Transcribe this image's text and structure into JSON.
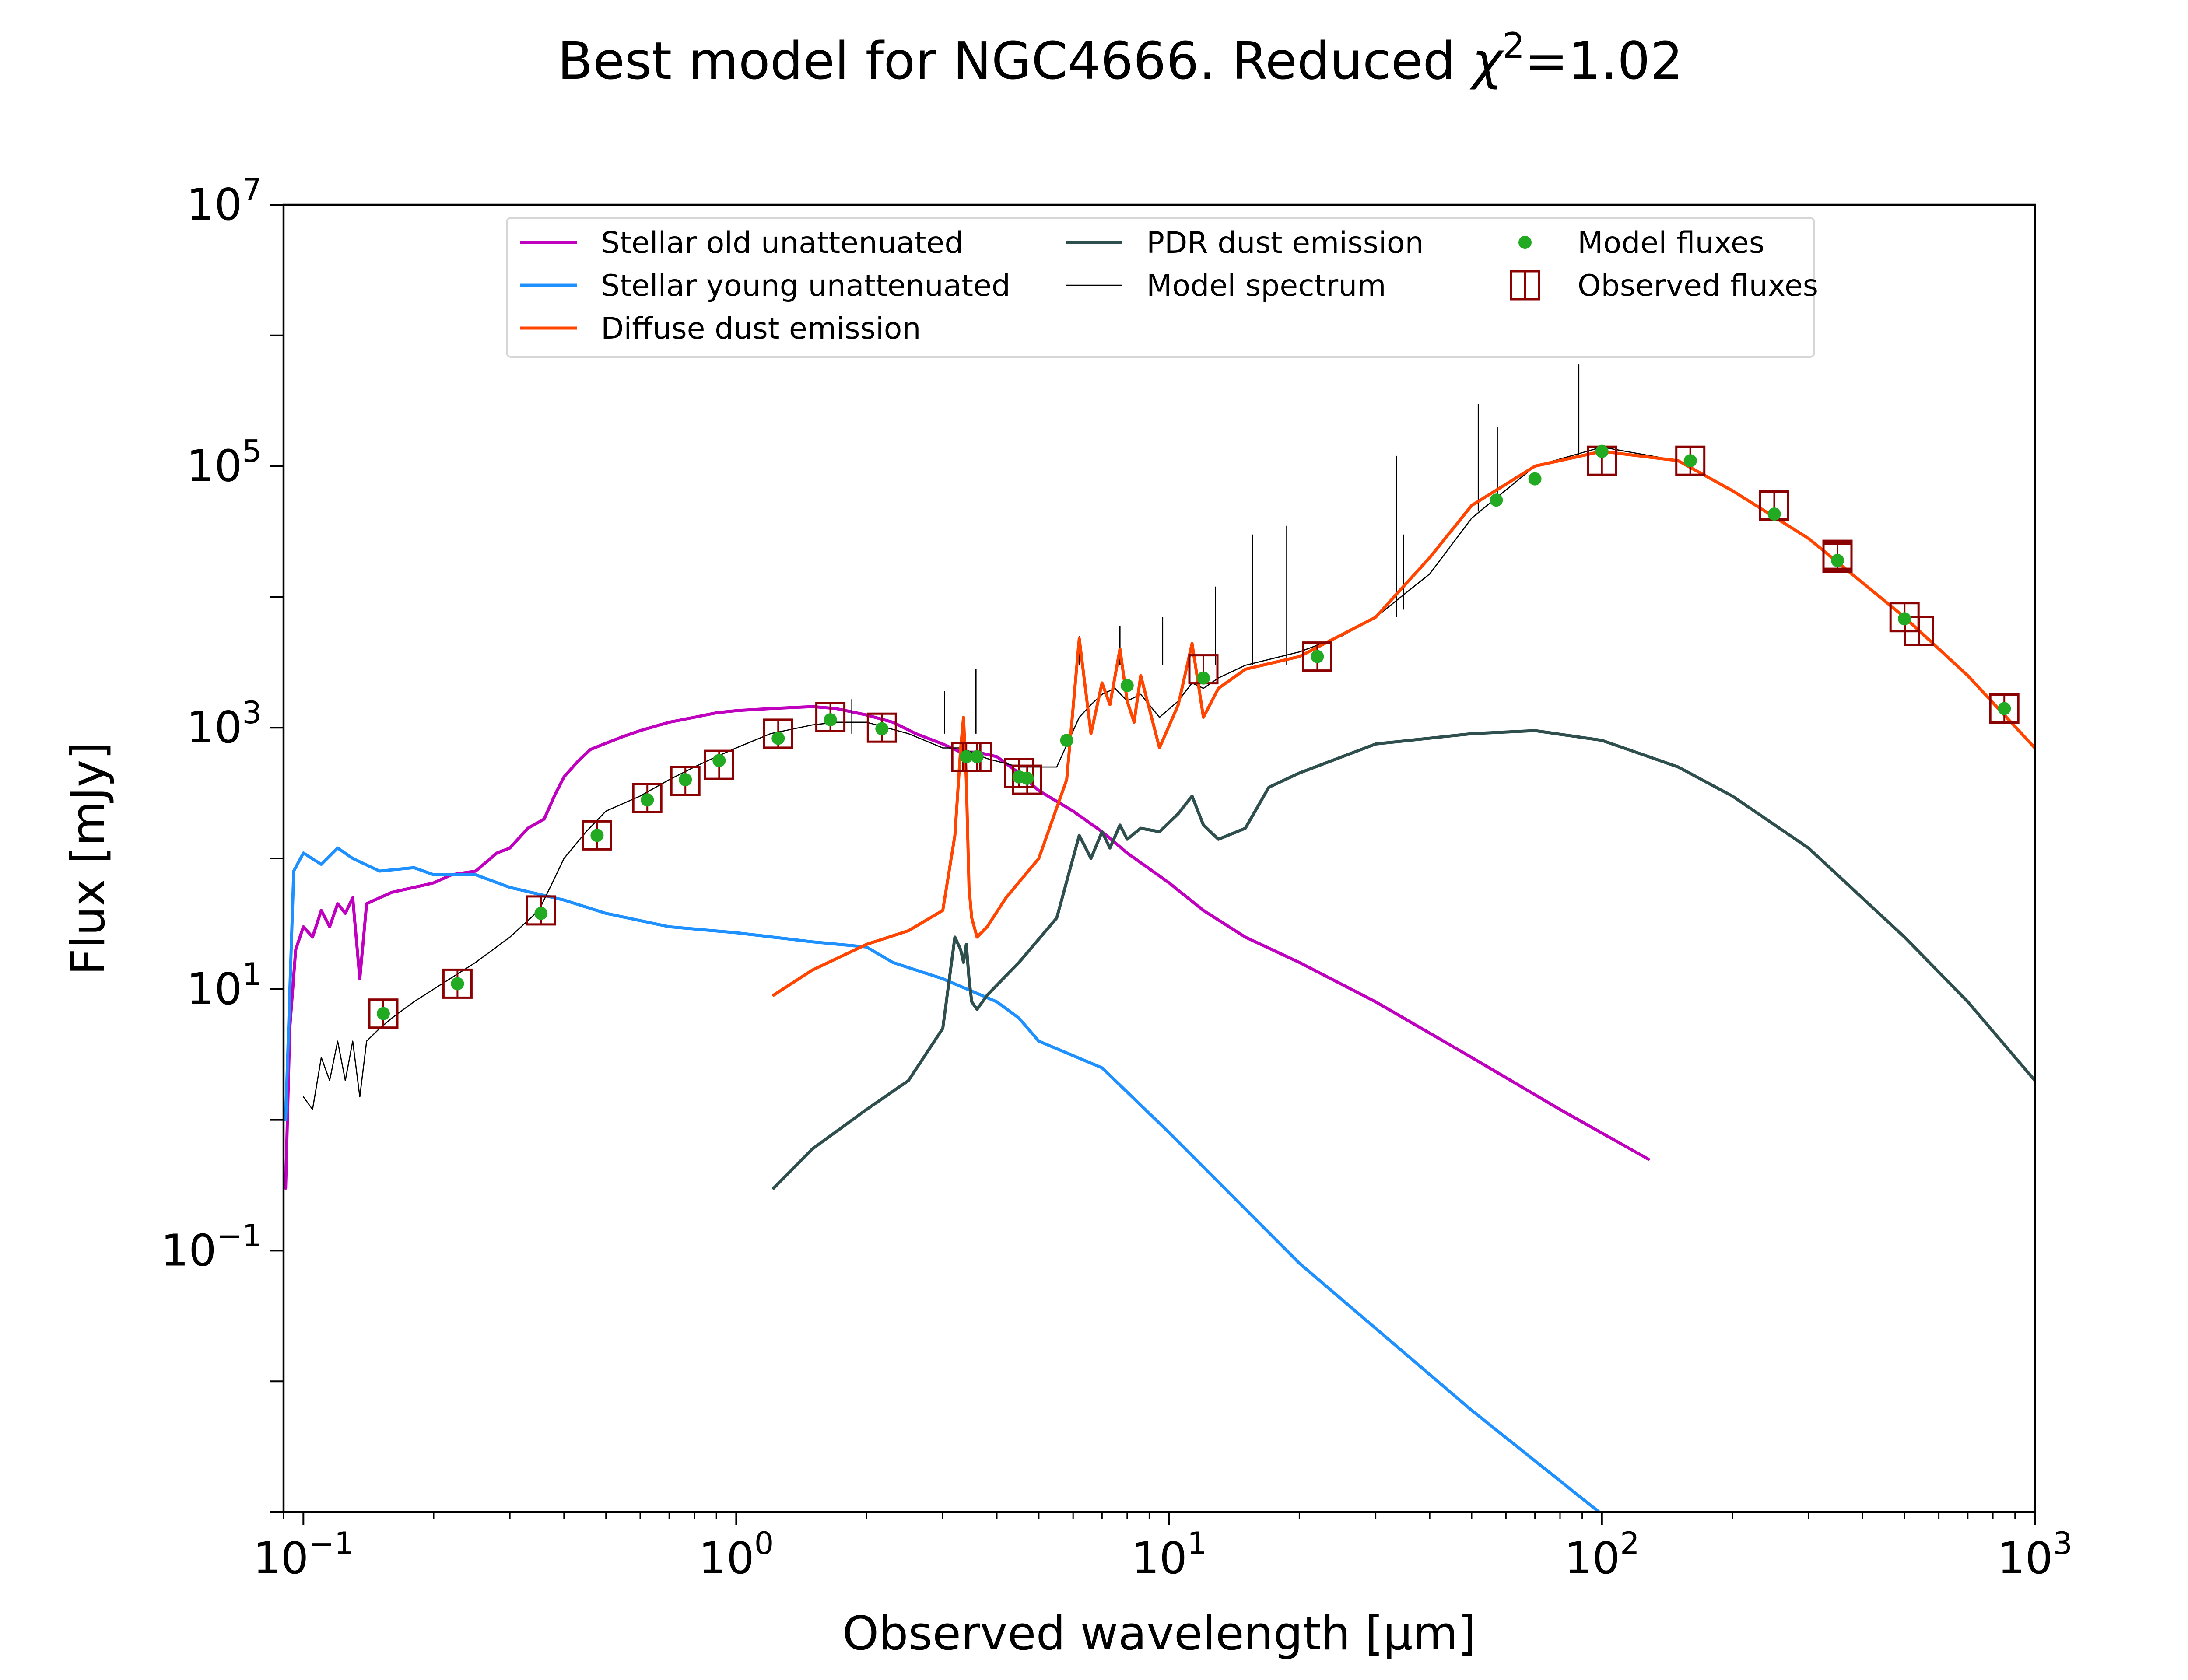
{
  "chart_data": {
    "type": "line",
    "title_prefix": "Best model for NGC4666. Reduced ",
    "title_chi": "χ",
    "title_sup": "2",
    "title_suffix": "=1.02",
    "xlabel": "Observed wavelength [μm]",
    "ylabel": "Flux [mJy]",
    "xscale": "log",
    "yscale": "log",
    "xlim": [
      0.09,
      1000
    ],
    "ylim": [
      0.001,
      10000000
    ],
    "grid": false,
    "legend_placement": "top-center",
    "x_ticks": [
      {
        "value": 0.1,
        "base": "10",
        "exp": "−1"
      },
      {
        "value": 1,
        "base": "10",
        "exp": "0"
      },
      {
        "value": 10,
        "base": "10",
        "exp": "1"
      },
      {
        "value": 100,
        "base": "10",
        "exp": "2"
      },
      {
        "value": 1000,
        "base": "10",
        "exp": "3"
      }
    ],
    "y_ticks": [
      {
        "value": 0.1,
        "base": "10",
        "exp": "−1"
      },
      {
        "value": 10,
        "base": "10",
        "exp": "1"
      },
      {
        "value": 1000,
        "base": "10",
        "exp": "3"
      },
      {
        "value": 100000,
        "base": "10",
        "exp": "5"
      },
      {
        "value": 10000000,
        "base": "10",
        "exp": "7"
      }
    ],
    "legend": [
      {
        "key": "old",
        "label": "Stellar old unattenuated",
        "color": "#bf00bf",
        "kind": "line"
      },
      {
        "key": "young",
        "label": "Stellar young unattenuated",
        "color": "#1e90ff",
        "kind": "line"
      },
      {
        "key": "diffuse",
        "label": "Diffuse dust emission",
        "color": "#ff4500",
        "kind": "line"
      },
      {
        "key": "pdr",
        "label": "PDR dust emission",
        "color": "#2f4f4f",
        "kind": "line"
      },
      {
        "key": "model_spectrum",
        "label": "Model spectrum",
        "color": "#000000",
        "kind": "thinline"
      },
      {
        "key": "model_fluxes",
        "label": "Model fluxes",
        "color": "#22aa22",
        "kind": "dot"
      },
      {
        "key": "observed_fluxes",
        "label": "Observed fluxes",
        "color": "#8b0000",
        "kind": "square"
      }
    ],
    "series": [
      {
        "key": "old",
        "color": "#bf00bf",
        "width": 7,
        "x": [
          0.091,
          0.093,
          0.096,
          0.1,
          0.105,
          0.11,
          0.115,
          0.12,
          0.125,
          0.13,
          0.135,
          0.14,
          0.15,
          0.16,
          0.18,
          0.2,
          0.22,
          0.25,
          0.28,
          0.3,
          0.33,
          0.36,
          0.38,
          0.4,
          0.43,
          0.46,
          0.5,
          0.55,
          0.6,
          0.7,
          0.8,
          0.9,
          1,
          1.2,
          1.5,
          1.7,
          2,
          2.3,
          2.6,
          3,
          3.3,
          3.6,
          4,
          4.5,
          5,
          6,
          7,
          8,
          10,
          12,
          15,
          20,
          30,
          50,
          80,
          128
        ],
        "y": [
          0.3,
          5,
          20,
          30,
          25,
          40,
          30,
          45,
          38,
          50,
          12,
          45,
          50,
          55,
          60,
          65,
          75,
          80,
          110,
          120,
          170,
          200,
          300,
          420,
          550,
          680,
          760,
          860,
          950,
          1100,
          1200,
          1300,
          1350,
          1400,
          1450,
          1400,
          1250,
          1100,
          900,
          750,
          650,
          650,
          600,
          450,
          330,
          230,
          160,
          110,
          65,
          40,
          25,
          16,
          8,
          3,
          1.2,
          0.5
        ]
      },
      {
        "key": "young",
        "color": "#1e90ff",
        "width": 7,
        "x": [
          0.091,
          0.095,
          0.1,
          0.11,
          0.12,
          0.13,
          0.15,
          0.18,
          0.2,
          0.25,
          0.3,
          0.4,
          0.5,
          0.7,
          1,
          1.5,
          2,
          2.3,
          2.6,
          3,
          4,
          4.5,
          5,
          7,
          10,
          20,
          50,
          128
        ],
        "y": [
          1,
          80,
          110,
          90,
          120,
          100,
          80,
          85,
          75,
          75,
          60,
          48,
          38,
          30,
          27,
          23,
          21,
          16,
          14,
          12,
          8,
          6,
          4,
          2.5,
          0.8,
          0.08,
          0.006,
          0.0005
        ]
      },
      {
        "key": "diffuse",
        "color": "#ff4500",
        "width": 7,
        "x": [
          1.22,
          1.5,
          2,
          2.5,
          3,
          3.2,
          3.3,
          3.35,
          3.4,
          3.45,
          3.5,
          3.6,
          3.8,
          4.2,
          5,
          5.8,
          6.2,
          6.6,
          7,
          7.3,
          7.7,
          8,
          8.3,
          8.6,
          9.5,
          10.5,
          11.3,
          12,
          13,
          15,
          20,
          30,
          40,
          50,
          70,
          100,
          150,
          200,
          300,
          500,
          700,
          1000
        ],
        "y": [
          9,
          14,
          22,
          28,
          40,
          150,
          700,
          1200,
          400,
          60,
          35,
          25,
          30,
          50,
          100,
          400,
          4800,
          900,
          2200,
          1500,
          4000,
          1600,
          1100,
          2500,
          700,
          1500,
          4400,
          1200,
          2000,
          2800,
          3500,
          7000,
          20000,
          50000,
          100000,
          130000,
          110000,
          65000,
          28000,
          7000,
          2500,
          700
        ]
      },
      {
        "key": "pdr",
        "color": "#2f4f4f",
        "width": 7,
        "x": [
          1.22,
          1.5,
          2,
          2.5,
          3,
          3.2,
          3.3,
          3.35,
          3.4,
          3.45,
          3.5,
          3.6,
          3.8,
          4.5,
          5.5,
          6.2,
          6.6,
          7,
          7.3,
          7.7,
          8,
          8.6,
          9.5,
          10.5,
          11.3,
          12,
          13,
          15,
          17,
          20,
          30,
          50,
          70,
          100,
          150,
          200,
          300,
          500,
          700,
          1000
        ],
        "y": [
          0.3,
          0.6,
          1.2,
          2,
          5,
          25,
          20,
          16,
          22,
          12,
          8,
          7,
          9,
          16,
          35,
          150,
          100,
          160,
          120,
          180,
          140,
          170,
          160,
          220,
          300,
          180,
          140,
          170,
          350,
          450,
          750,
          900,
          950,
          800,
          500,
          300,
          120,
          25,
          8,
          2
        ]
      },
      {
        "key": "model_spectrum",
        "color": "#000000",
        "width": 2.6,
        "x": [
          0.1,
          0.105,
          0.11,
          0.115,
          0.12,
          0.125,
          0.13,
          0.135,
          0.14,
          0.15,
          0.16,
          0.18,
          0.2,
          0.25,
          0.3,
          0.35,
          0.38,
          0.4,
          0.45,
          0.5,
          0.6,
          0.7,
          0.8,
          0.9,
          1,
          1.2,
          1.5,
          1.7,
          2,
          2.5,
          3,
          3.3,
          3.5,
          3.8,
          4.5,
          5.5,
          6.2,
          6.6,
          7,
          7.5,
          8,
          8.6,
          9.5,
          10.5,
          11.3,
          12,
          13,
          15,
          20,
          25,
          30,
          40,
          50,
          70,
          100,
          150,
          200,
          300,
          500,
          700,
          1000
        ],
        "y": [
          1.5,
          1.2,
          3,
          2,
          4,
          2,
          4,
          1.5,
          4,
          5,
          6,
          8,
          10,
          16,
          25,
          40,
          70,
          100,
          160,
          230,
          300,
          400,
          500,
          600,
          700,
          900,
          1050,
          1100,
          1100,
          900,
          700,
          700,
          650,
          580,
          500,
          500,
          1200,
          1500,
          1800,
          2000,
          1600,
          1800,
          1200,
          1600,
          2200,
          2000,
          2400,
          3000,
          3800,
          5000,
          7000,
          15000,
          40000,
          100000,
          140000,
          110000,
          65000,
          28000,
          7000,
          2500,
          700
        ]
      },
      {
        "key": "model_spectrum_lines",
        "color": "#000000",
        "width": 2.6,
        "segments": true,
        "x": [
          1.85,
          1.85,
          3.03,
          3.03,
          3.58,
          3.58,
          6.2,
          6.2,
          7.7,
          7.7,
          9.66,
          9.66,
          12.8,
          12.8,
          15.6,
          15.6,
          18.7,
          18.7,
          33.5,
          33.5,
          34.8,
          34.8,
          51.8,
          51.8,
          57.3,
          57.3,
          88.4,
          88.4
        ],
        "y": [
          900,
          1650,
          900,
          1900,
          900,
          2800,
          3000,
          5000,
          3000,
          6000,
          3000,
          7000,
          3000,
          12000,
          3000,
          30000,
          3000,
          35000,
          7000,
          120000,
          8000,
          30000,
          45000,
          300000,
          50000,
          200000,
          120000,
          600000
        ]
      }
    ],
    "model_fluxes": {
      "x": [
        0.153,
        0.227,
        0.354,
        0.477,
        0.623,
        0.763,
        0.913,
        1.25,
        1.65,
        2.17,
        3.4,
        3.6,
        4.5,
        4.7,
        5.8,
        8,
        12,
        22,
        57,
        70,
        100,
        160,
        250,
        350,
        500,
        850
      ],
      "y": [
        6.5,
        11,
        38,
        150,
        280,
        400,
        560,
        830,
        1150,
        980,
        600,
        600,
        420,
        410,
        800,
        2100,
        2400,
        3500,
        55000,
        80000,
        130000,
        110000,
        43000,
        19000,
        6800,
        1400
      ]
    },
    "observed_fluxes": {
      "x": [
        0.153,
        0.227,
        0.354,
        0.477,
        0.623,
        0.763,
        0.913,
        1.25,
        1.65,
        2.17,
        3.4,
        3.6,
        4.5,
        4.7,
        12,
        22,
        100,
        160,
        250,
        350,
        350,
        500,
        540,
        850
      ],
      "y": [
        6.5,
        11,
        40,
        150,
        290,
        390,
        520,
        900,
        1200,
        1000,
        600,
        600,
        450,
        400,
        2800,
        3500,
        110000,
        110000,
        50000,
        21000,
        20000,
        7000,
        5500,
        1400
      ]
    }
  }
}
